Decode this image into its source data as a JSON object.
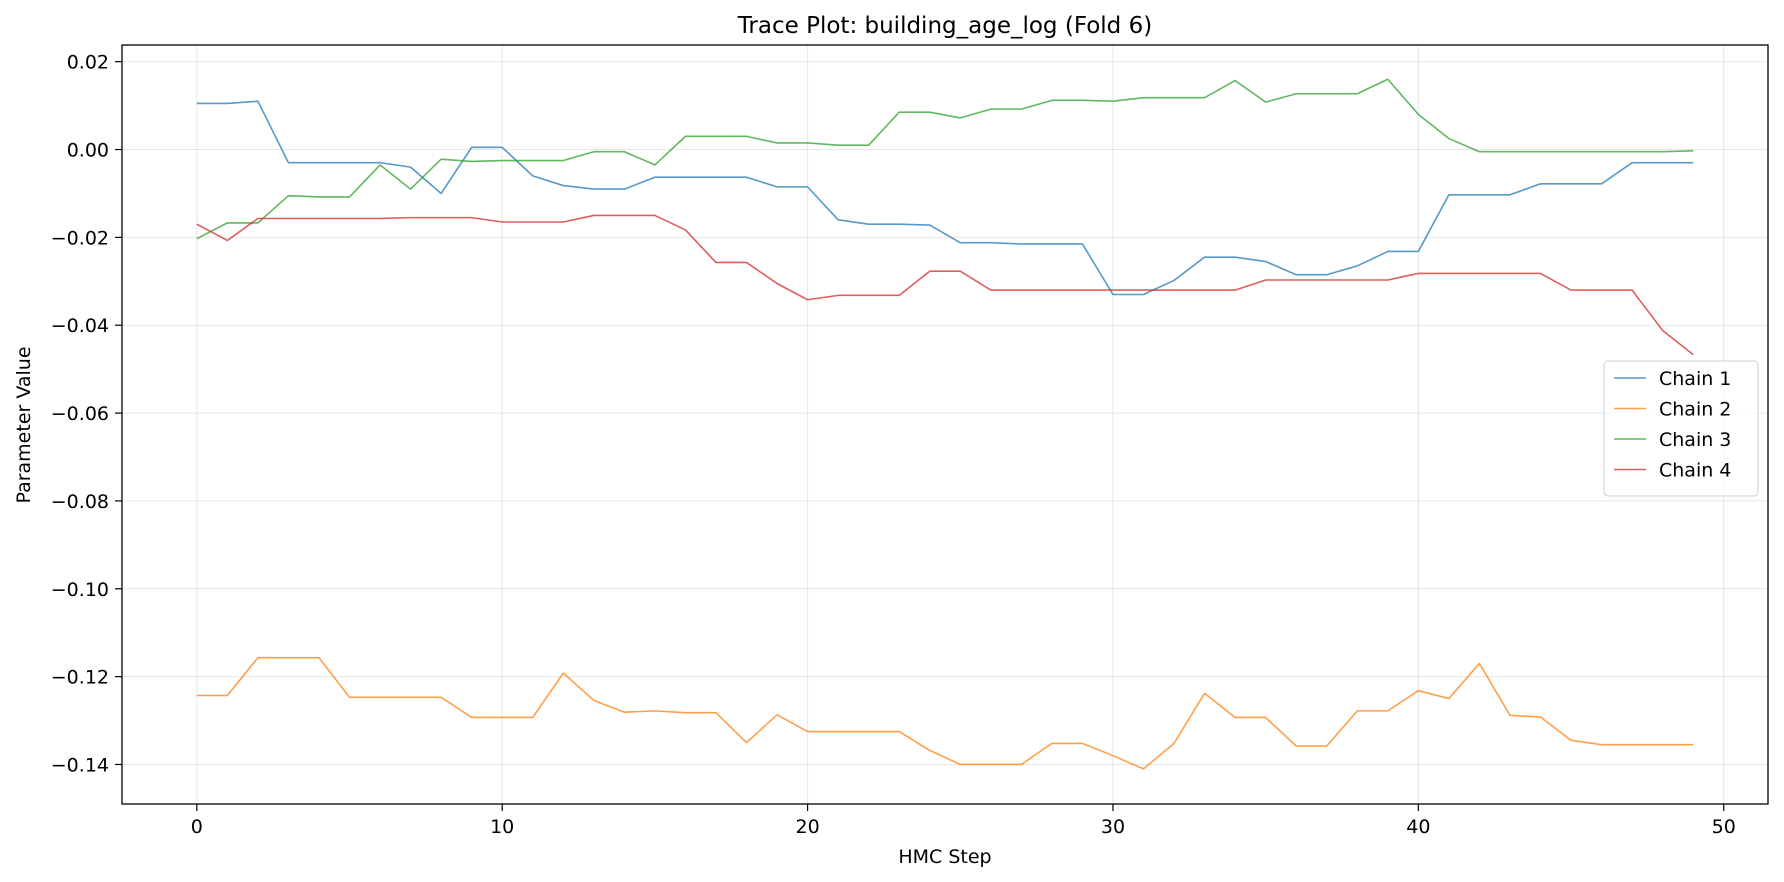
{
  "chart_data": {
    "type": "line",
    "title": "Trace Plot: building_age_log (Fold 6)",
    "xlabel": "HMC Step",
    "ylabel": "Parameter Value",
    "xlim": [
      -2.45,
      51.45
    ],
    "ylim": [
      -0.149,
      0.0238
    ],
    "xticks": [
      0,
      10,
      20,
      30,
      40,
      50
    ],
    "yticks": [
      0.02,
      0.0,
      -0.02,
      -0.04,
      -0.06,
      -0.08,
      -0.1,
      -0.12,
      -0.14
    ],
    "ytick_labels": [
      "0.02",
      "0.00",
      "−0.02",
      "−0.04",
      "−0.06",
      "−0.08",
      "−0.10",
      "−0.12",
      "−0.14"
    ],
    "grid": true,
    "legend_position": "center-right",
    "x": [
      0,
      1,
      2,
      3,
      4,
      5,
      6,
      7,
      8,
      9,
      10,
      11,
      12,
      13,
      14,
      15,
      16,
      17,
      18,
      19,
      20,
      21,
      22,
      23,
      24,
      25,
      26,
      27,
      28,
      29,
      30,
      31,
      32,
      33,
      34,
      35,
      36,
      37,
      38,
      39,
      40,
      41,
      42,
      43,
      44,
      45,
      46,
      47,
      48,
      49
    ],
    "series": [
      {
        "name": "Chain 1",
        "color": "#1f77b4",
        "values": [
          0.0105,
          0.0105,
          0.011,
          -0.003,
          -0.003,
          -0.003,
          -0.003,
          -0.004,
          -0.01,
          0.0005,
          0.0005,
          -0.006,
          -0.0082,
          -0.009,
          -0.009,
          -0.0063,
          -0.0063,
          -0.0063,
          -0.0063,
          -0.0085,
          -0.0085,
          -0.016,
          -0.017,
          -0.017,
          -0.0172,
          -0.0212,
          -0.0212,
          -0.0215,
          -0.0215,
          -0.0215,
          -0.033,
          -0.033,
          -0.0298,
          -0.0245,
          -0.0245,
          -0.0255,
          -0.0285,
          -0.0285,
          -0.0265,
          -0.0232,
          -0.0232,
          -0.0103,
          -0.0103,
          -0.0103,
          -0.0078,
          -0.0078,
          -0.0078,
          -0.003,
          -0.003,
          -0.003
        ]
      },
      {
        "name": "Chain 2",
        "color": "#ff7f0e",
        "values": [
          -0.1243,
          -0.1243,
          -0.1157,
          -0.1157,
          -0.1157,
          -0.1247,
          -0.1247,
          -0.1247,
          -0.1247,
          -0.1293,
          -0.1293,
          -0.1293,
          -0.1192,
          -0.1254,
          -0.1281,
          -0.1278,
          -0.1282,
          -0.1282,
          -0.135,
          -0.1287,
          -0.1325,
          -0.1325,
          -0.1325,
          -0.1325,
          -0.1368,
          -0.14,
          -0.14,
          -0.14,
          -0.1352,
          -0.1352,
          -0.138,
          -0.141,
          -0.1352,
          -0.1238,
          -0.1293,
          -0.1293,
          -0.1358,
          -0.1358,
          -0.1278,
          -0.1278,
          -0.1232,
          -0.125,
          -0.117,
          -0.1288,
          -0.1292,
          -0.1345,
          -0.1355,
          -0.1355,
          -0.1355,
          -0.1355
        ]
      },
      {
        "name": "Chain 3",
        "color": "#2ca02c",
        "values": [
          -0.0203,
          -0.0167,
          -0.0167,
          -0.0105,
          -0.0108,
          -0.0108,
          -0.0035,
          -0.009,
          -0.0022,
          -0.0027,
          -0.0025,
          -0.0025,
          -0.0025,
          -0.0005,
          -0.0005,
          -0.0035,
          0.003,
          0.003,
          0.003,
          0.0015,
          0.0015,
          0.001,
          0.001,
          0.0085,
          0.0085,
          0.0072,
          0.0092,
          0.0092,
          0.0112,
          0.0112,
          0.011,
          0.0118,
          0.0118,
          0.0118,
          0.0157,
          0.0108,
          0.0127,
          0.0127,
          0.0127,
          0.016,
          0.008,
          0.0025,
          -0.0005,
          -0.0005,
          -0.0005,
          -0.0005,
          -0.0005,
          -0.0005,
          -0.0005,
          -0.0003
        ]
      },
      {
        "name": "Chain 4",
        "color": "#d62728",
        "values": [
          -0.017,
          -0.0207,
          -0.0157,
          -0.0157,
          -0.0157,
          -0.0157,
          -0.0157,
          -0.0155,
          -0.0155,
          -0.0155,
          -0.0165,
          -0.0165,
          -0.0165,
          -0.015,
          -0.015,
          -0.015,
          -0.0183,
          -0.0257,
          -0.0257,
          -0.0305,
          -0.0342,
          -0.0332,
          -0.0332,
          -0.0332,
          -0.0277,
          -0.0277,
          -0.032,
          -0.032,
          -0.032,
          -0.032,
          -0.032,
          -0.032,
          -0.032,
          -0.032,
          -0.032,
          -0.0297,
          -0.0297,
          -0.0297,
          -0.0297,
          -0.0297,
          -0.0282,
          -0.0282,
          -0.0282,
          -0.0282,
          -0.0282,
          -0.032,
          -0.032,
          -0.032,
          -0.0412,
          -0.0467
        ]
      }
    ]
  }
}
